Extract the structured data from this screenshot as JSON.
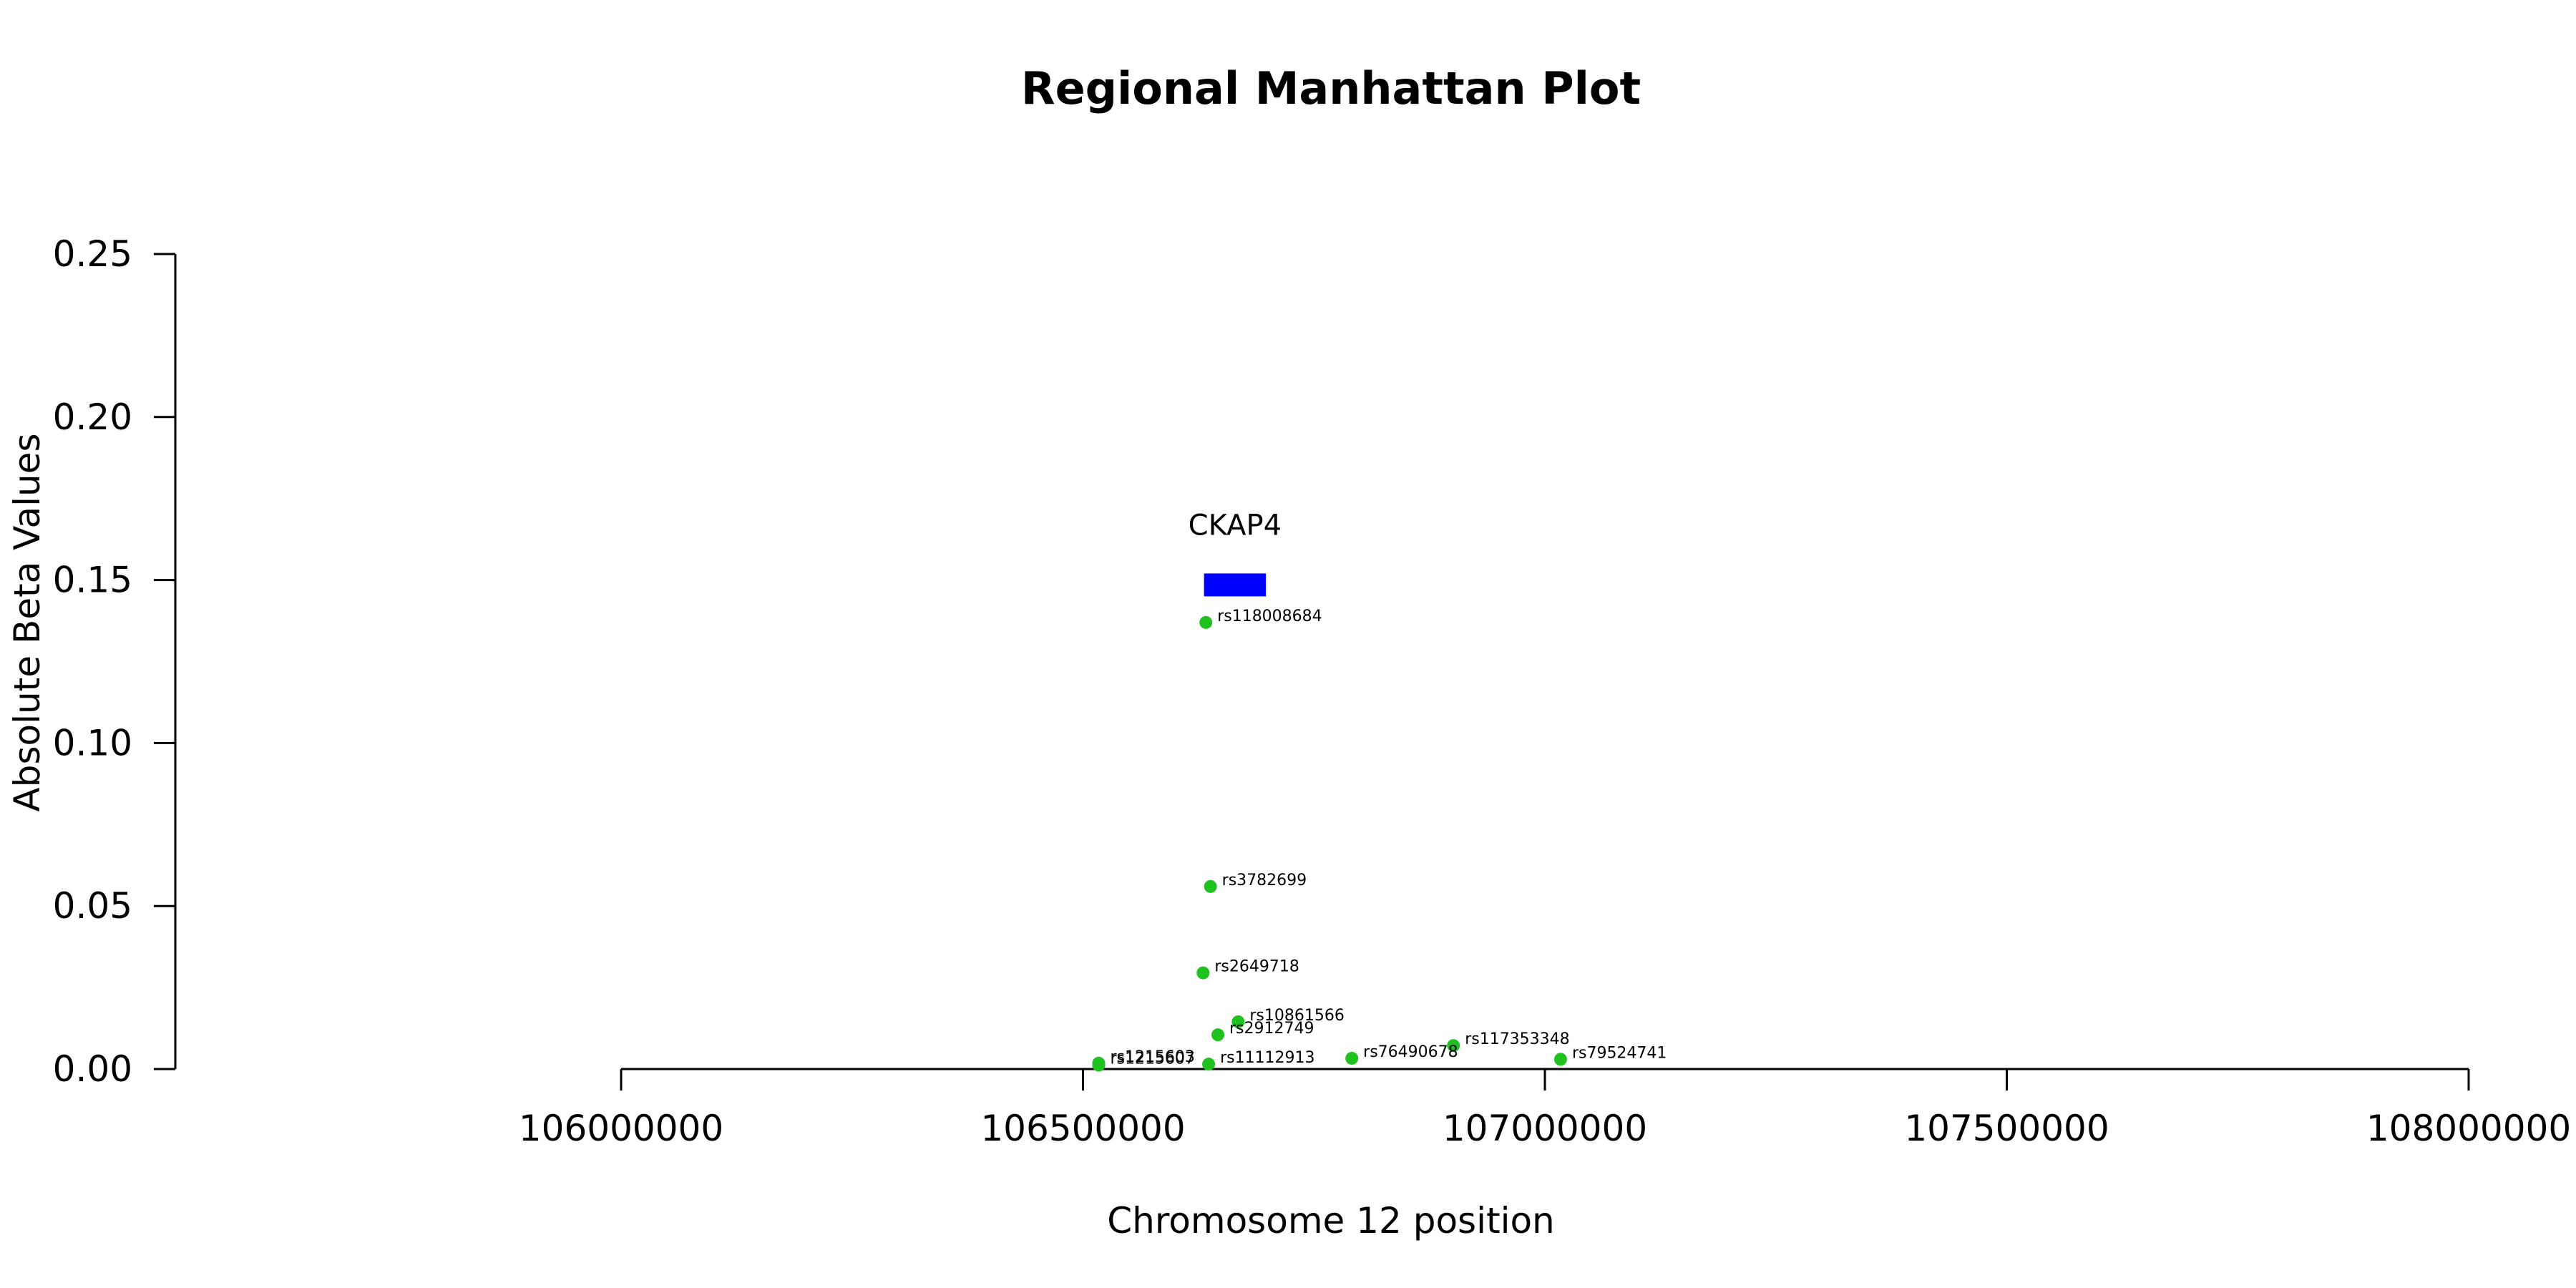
{
  "chart_data": {
    "type": "scatter",
    "title": "Regional Manhattan Plot",
    "xlabel": "Chromosome 12 position",
    "ylabel": "Absolute Beta Values",
    "xlim": [
      106000000,
      108000000
    ],
    "ylim": [
      0,
      0.25
    ],
    "x_ticks": [
      106000000,
      106500000,
      107000000,
      107500000,
      108000000
    ],
    "y_ticks": [
      0.0,
      0.05,
      0.1,
      0.15,
      0.2,
      0.25
    ],
    "x_tick_labels": [
      "106000000",
      "106500000",
      "107000000",
      "107500000",
      "108000000"
    ],
    "y_tick_labels": [
      "0.00",
      "0.05",
      "0.10",
      "0.15",
      "0.20",
      "0.25"
    ],
    "grid": false,
    "point_color": "#1fc11f",
    "points": [
      {
        "label": "rs118008684",
        "x": 106633000,
        "y": 0.137
      },
      {
        "label": "rs3782699",
        "x": 106638000,
        "y": 0.056
      },
      {
        "label": "rs2649718",
        "x": 106630000,
        "y": 0.0295
      },
      {
        "label": "rs10861566",
        "x": 106668000,
        "y": 0.0145
      },
      {
        "label": "rs2912749",
        "x": 106646000,
        "y": 0.0105
      },
      {
        "label": "rs117353348",
        "x": 106901000,
        "y": 0.0072
      },
      {
        "label": "rs76490678",
        "x": 106791000,
        "y": 0.0033
      },
      {
        "label": "rs79524741",
        "x": 107017000,
        "y": 0.003
      },
      {
        "label": "rs11112913",
        "x": 106636000,
        "y": 0.0015
      },
      {
        "label": "rs1215603",
        "x": 106517000,
        "y": 0.0018
      },
      {
        "label": "rs1215607",
        "x": 106517000,
        "y": 0.0012
      }
    ],
    "genes": [
      {
        "name": "CKAP4",
        "start": 106631000,
        "end": 106698000,
        "y": 0.1485,
        "color": "#0000ff"
      }
    ]
  }
}
